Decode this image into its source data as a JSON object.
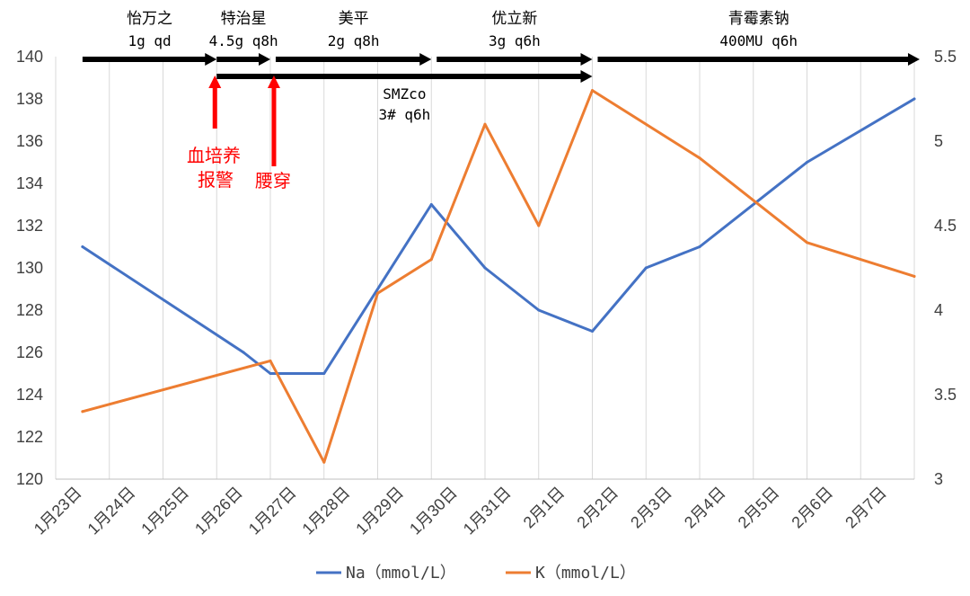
{
  "chart_data": {
    "type": "line",
    "x": [
      "1月23日",
      "1月24日",
      "1月25日",
      "1月26日",
      "1月27日",
      "1月28日",
      "1月29日",
      "1月30日",
      "1月31日",
      "2月1日",
      "2月2日",
      "2月3日",
      "2月4日",
      "2月5日",
      "2月6日",
      "2月7日"
    ],
    "y_left": {
      "ticks": [
        "120",
        "122",
        "124",
        "126",
        "128",
        "130",
        "132",
        "134",
        "136",
        "138",
        "140"
      ],
      "ylim": [
        120,
        140
      ]
    },
    "y_right": {
      "ticks": [
        "3",
        "3.5",
        "4",
        "4.5",
        "5",
        "5.5"
      ],
      "ylim": [
        3,
        5.5
      ]
    },
    "grid": "vertical",
    "legend_position": "bottom",
    "series": [
      {
        "name": "Na（mmol/L）",
        "axis": "left",
        "color": "#4472c4",
        "points": [
          [
            0,
            131
          ],
          [
            3,
            126
          ],
          [
            3.5,
            125
          ],
          [
            4.5,
            125
          ],
          [
            6.5,
            133
          ],
          [
            7.5,
            130
          ],
          [
            8.5,
            128
          ],
          [
            9.5,
            127
          ],
          [
            10.5,
            130
          ],
          [
            11.5,
            131
          ],
          [
            13.5,
            135
          ],
          [
            15.5,
            138
          ]
        ]
      },
      {
        "name": "K（mmol/L）",
        "axis": "right",
        "color": "#ed7d31",
        "points": [
          [
            0,
            3.4
          ],
          [
            3.5,
            3.7
          ],
          [
            4.5,
            3.1
          ],
          [
            5.5,
            4.1
          ],
          [
            6.5,
            4.3
          ],
          [
            7.5,
            5.1
          ],
          [
            8.5,
            4.5
          ],
          [
            9.5,
            5.3
          ],
          [
            11.5,
            4.9
          ],
          [
            13.5,
            4.4
          ],
          [
            15.5,
            4.2
          ]
        ]
      }
    ],
    "medications": [
      {
        "name": "怡万之",
        "dose": "1g qd",
        "from": 0.5,
        "to": 3,
        "row": 0
      },
      {
        "name": "特治星",
        "dose": "4.5g q8h",
        "from": 3,
        "to": 4,
        "row": 0
      },
      {
        "name": "美平",
        "dose": "2g q8h",
        "from": 4.1,
        "to": 7,
        "row": 0
      },
      {
        "name": "优立新",
        "dose": "3g q6h",
        "from": 7.1,
        "to": 10,
        "row": 0
      },
      {
        "name": "青霉素钠",
        "dose": "400MU q6h",
        "from": 10.1,
        "to": 16.1,
        "row": 0
      },
      {
        "name": "SMZco",
        "dose": "3# q6h",
        "from": 3,
        "to": 10,
        "row": 1
      }
    ],
    "events": [
      {
        "lines": [
          "血培养",
          "报警"
        ],
        "at": 3,
        "color": "#ff0000"
      },
      {
        "lines": [
          "腰穿"
        ],
        "at": 4.1,
        "color": "#ff0000"
      }
    ]
  }
}
